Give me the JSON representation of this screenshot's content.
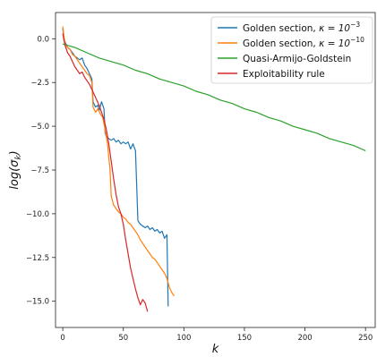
{
  "chart_data": {
    "type": "line",
    "xlabel": "k",
    "ylabel": "log(σ_k)",
    "xlim": [
      -6,
      258
    ],
    "ylim": [
      -16.5,
      1.5
    ],
    "xticks": [
      "0",
      "50",
      "100",
      "150",
      "200",
      "250"
    ],
    "yticks": [
      "0.0",
      "−2.5",
      "−5.0",
      "−7.5",
      "−10.0",
      "−12.5",
      "−15.0"
    ],
    "legend_position": "top-right",
    "legend": [
      {
        "prefix": "Golden section, ",
        "math": "κ = 10",
        "sup": "−3"
      },
      {
        "prefix": "Golden section, ",
        "math": "κ = 10",
        "sup": "−10"
      },
      {
        "prefix": "Quasi-Armijo-Goldstein",
        "math": "",
        "sup": ""
      },
      {
        "prefix": "Exploitability rule",
        "math": "",
        "sup": ""
      }
    ],
    "series": [
      {
        "color": "#1f77b4",
        "points": [
          [
            0,
            0.6
          ],
          [
            1,
            -0.1
          ],
          [
            2,
            -0.2
          ],
          [
            4,
            -0.5
          ],
          [
            6,
            -0.6
          ],
          [
            8,
            -0.8
          ],
          [
            10,
            -1.0
          ],
          [
            12,
            -1.1
          ],
          [
            14,
            -1.2
          ],
          [
            16,
            -1.1
          ],
          [
            18,
            -1.5
          ],
          [
            20,
            -1.7
          ],
          [
            22,
            -2.0
          ],
          [
            24,
            -2.3
          ],
          [
            25,
            -3.6
          ],
          [
            27,
            -3.9
          ],
          [
            29,
            -3.8
          ],
          [
            30,
            -4.1
          ],
          [
            32,
            -3.6
          ],
          [
            34,
            -4.0
          ],
          [
            35,
            -5.4
          ],
          [
            36,
            -5.6
          ],
          [
            38,
            -5.7
          ],
          [
            40,
            -5.8
          ],
          [
            42,
            -5.7
          ],
          [
            44,
            -5.9
          ],
          [
            46,
            -5.8
          ],
          [
            48,
            -6.0
          ],
          [
            50,
            -5.9
          ],
          [
            52,
            -6.0
          ],
          [
            54,
            -5.9
          ],
          [
            56,
            -6.3
          ],
          [
            58,
            -6.0
          ],
          [
            60,
            -6.4
          ],
          [
            62,
            -10.4
          ],
          [
            64,
            -10.6
          ],
          [
            66,
            -10.7
          ],
          [
            68,
            -10.8
          ],
          [
            70,
            -10.7
          ],
          [
            72,
            -10.9
          ],
          [
            74,
            -10.8
          ],
          [
            76,
            -11.0
          ],
          [
            78,
            -10.9
          ],
          [
            80,
            -11.1
          ],
          [
            82,
            -11.0
          ],
          [
            84,
            -11.4
          ],
          [
            86,
            -11.2
          ],
          [
            87,
            -15.3
          ]
        ]
      },
      {
        "color": "#ff7f0e",
        "points": [
          [
            0,
            0.7
          ],
          [
            1,
            0.1
          ],
          [
            2,
            -0.3
          ],
          [
            4,
            -0.5
          ],
          [
            6,
            -0.6
          ],
          [
            8,
            -0.9
          ],
          [
            10,
            -1.0
          ],
          [
            12,
            -1.2
          ],
          [
            14,
            -1.4
          ],
          [
            16,
            -1.6
          ],
          [
            18,
            -1.8
          ],
          [
            20,
            -2.0
          ],
          [
            22,
            -2.1
          ],
          [
            24,
            -2.5
          ],
          [
            25,
            -3.9
          ],
          [
            27,
            -4.2
          ],
          [
            29,
            -4.0
          ],
          [
            31,
            -4.3
          ],
          [
            33,
            -4.5
          ],
          [
            35,
            -5.2
          ],
          [
            37,
            -6.0
          ],
          [
            38,
            -6.8
          ],
          [
            39,
            -7.5
          ],
          [
            40,
            -9.0
          ],
          [
            42,
            -9.5
          ],
          [
            44,
            -9.7
          ],
          [
            46,
            -9.9
          ],
          [
            48,
            -10.0
          ],
          [
            50,
            -10.2
          ],
          [
            52,
            -10.3
          ],
          [
            54,
            -10.5
          ],
          [
            56,
            -10.6
          ],
          [
            58,
            -10.8
          ],
          [
            60,
            -11.0
          ],
          [
            62,
            -11.2
          ],
          [
            64,
            -11.5
          ],
          [
            66,
            -11.7
          ],
          [
            68,
            -11.9
          ],
          [
            70,
            -12.1
          ],
          [
            72,
            -12.3
          ],
          [
            74,
            -12.5
          ],
          [
            76,
            -12.6
          ],
          [
            78,
            -12.8
          ],
          [
            80,
            -13.0
          ],
          [
            82,
            -13.2
          ],
          [
            84,
            -13.4
          ],
          [
            86,
            -13.7
          ],
          [
            88,
            -14.2
          ],
          [
            90,
            -14.5
          ],
          [
            92,
            -14.7
          ]
        ]
      },
      {
        "color": "#2ca02c",
        "points": [
          [
            0,
            -0.3
          ],
          [
            10,
            -0.5
          ],
          [
            20,
            -0.8
          ],
          [
            30,
            -1.1
          ],
          [
            40,
            -1.3
          ],
          [
            50,
            -1.5
          ],
          [
            60,
            -1.8
          ],
          [
            70,
            -2.0
          ],
          [
            80,
            -2.3
          ],
          [
            90,
            -2.5
          ],
          [
            100,
            -2.7
          ],
          [
            110,
            -3.0
          ],
          [
            120,
            -3.2
          ],
          [
            130,
            -3.5
          ],
          [
            140,
            -3.7
          ],
          [
            150,
            -4.0
          ],
          [
            160,
            -4.2
          ],
          [
            170,
            -4.5
          ],
          [
            180,
            -4.7
          ],
          [
            190,
            -5.0
          ],
          [
            200,
            -5.2
          ],
          [
            210,
            -5.4
          ],
          [
            220,
            -5.7
          ],
          [
            230,
            -5.9
          ],
          [
            240,
            -6.1
          ],
          [
            250,
            -6.4
          ]
        ]
      },
      {
        "color": "#d62728",
        "points": [
          [
            0,
            0.3
          ],
          [
            1,
            -0.1
          ],
          [
            2,
            -0.4
          ],
          [
            4,
            -0.8
          ],
          [
            6,
            -1.0
          ],
          [
            8,
            -1.3
          ],
          [
            10,
            -1.6
          ],
          [
            12,
            -1.8
          ],
          [
            14,
            -2.0
          ],
          [
            16,
            -1.9
          ],
          [
            18,
            -2.2
          ],
          [
            20,
            -2.4
          ],
          [
            22,
            -2.6
          ],
          [
            24,
            -2.9
          ],
          [
            26,
            -3.2
          ],
          [
            28,
            -3.5
          ],
          [
            30,
            -3.8
          ],
          [
            32,
            -4.2
          ],
          [
            34,
            -4.6
          ],
          [
            36,
            -5.2
          ],
          [
            38,
            -6.0
          ],
          [
            40,
            -7.0
          ],
          [
            42,
            -8.0
          ],
          [
            44,
            -8.9
          ],
          [
            46,
            -9.6
          ],
          [
            48,
            -10.0
          ],
          [
            50,
            -10.6
          ],
          [
            52,
            -11.5
          ],
          [
            54,
            -12.3
          ],
          [
            56,
            -13.1
          ],
          [
            58,
            -13.7
          ],
          [
            60,
            -14.3
          ],
          [
            62,
            -14.8
          ],
          [
            64,
            -15.2
          ],
          [
            66,
            -14.9
          ],
          [
            68,
            -15.1
          ],
          [
            70,
            -15.6
          ]
        ]
      }
    ]
  }
}
